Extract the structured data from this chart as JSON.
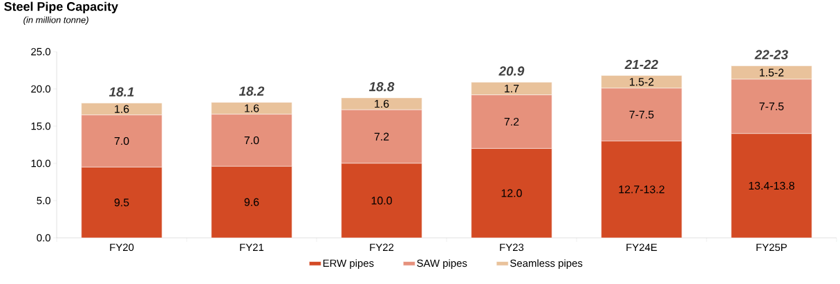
{
  "chart_data": {
    "type": "bar",
    "title": "Steel Pipe Capacity",
    "subtitle": "(in million tonne)",
    "categories": [
      "FY20",
      "FY21",
      "FY22",
      "FY23",
      "FY24E",
      "FY25P"
    ],
    "stacked": true,
    "series": [
      {
        "name": "ERW pipes",
        "color": "#d34a24",
        "values": [
          9.5,
          9.6,
          10.0,
          12.0,
          13.0,
          14.0
        ],
        "value_labels": [
          "9.5",
          "9.6",
          "10.0",
          "12.0",
          "12.7-13.2",
          "13.4-13.8"
        ]
      },
      {
        "name": "SAW pipes",
        "color": "#e6917c",
        "values": [
          7.0,
          7.0,
          7.2,
          7.2,
          7.1,
          7.3
        ],
        "value_labels": [
          "7.0",
          "7.0",
          "7.2",
          "7.2",
          "7-7.5",
          "7-7.5"
        ]
      },
      {
        "name": "Seamless pipes",
        "color": "#e9c29b",
        "values": [
          1.6,
          1.6,
          1.6,
          1.7,
          1.7,
          1.8
        ],
        "value_labels": [
          "1.6",
          "1.6",
          "1.6",
          "1.7",
          "1.5-2",
          "1.5-2"
        ]
      }
    ],
    "totals": [
      "18.1",
      "18.2",
      "18.8",
      "20.9",
      "21-22",
      "22-23"
    ],
    "ylim": [
      0,
      25
    ],
    "yticks": [
      {
        "value": 0,
        "label": "0.0"
      },
      {
        "value": 5,
        "label": "5.0"
      },
      {
        "value": 10,
        "label": "10.0"
      },
      {
        "value": 15,
        "label": "15.0"
      },
      {
        "value": 20,
        "label": "20.0"
      },
      {
        "value": 25,
        "label": "25.0"
      }
    ],
    "grid": false,
    "legend": "bottom"
  }
}
